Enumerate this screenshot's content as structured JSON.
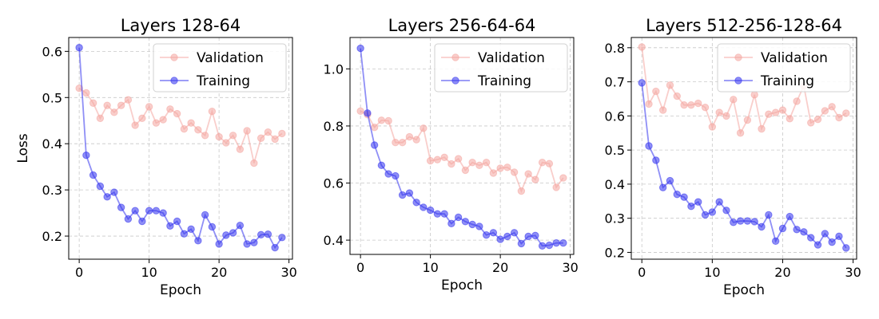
{
  "chart_data": [
    {
      "type": "line",
      "title": "Layers 128-64",
      "xlabel": "Epoch",
      "ylabel": "Loss",
      "xlim": [
        -1.5,
        30.5
      ],
      "ylim": [
        0.15,
        0.63
      ],
      "xticks": [
        0,
        10,
        20,
        30
      ],
      "yticks": [
        0.2,
        0.3,
        0.4,
        0.5,
        0.6
      ],
      "ytick_labels": [
        "0.2",
        "0.3",
        "0.4",
        "0.5",
        "0.6"
      ],
      "grid": true,
      "legend_position": "top-right",
      "x": [
        0,
        1,
        2,
        3,
        4,
        5,
        6,
        7,
        8,
        9,
        10,
        11,
        12,
        13,
        14,
        15,
        16,
        17,
        18,
        19,
        20,
        21,
        22,
        23,
        24,
        25,
        26,
        27,
        28,
        29
      ],
      "series": [
        {
          "name": "Validation",
          "color": "#f4a6a0",
          "values": [
            0.52,
            0.51,
            0.488,
            0.455,
            0.483,
            0.468,
            0.483,
            0.495,
            0.44,
            0.455,
            0.48,
            0.445,
            0.452,
            0.475,
            0.465,
            0.432,
            0.445,
            0.43,
            0.418,
            0.47,
            0.415,
            0.402,
            0.418,
            0.388,
            0.428,
            0.358,
            0.412,
            0.425,
            0.41,
            0.422
          ]
        },
        {
          "name": "Training",
          "color": "#3333ee",
          "values": [
            0.608,
            0.375,
            0.332,
            0.308,
            0.285,
            0.295,
            0.262,
            0.237,
            0.255,
            0.232,
            0.255,
            0.255,
            0.25,
            0.222,
            0.232,
            0.205,
            0.215,
            0.19,
            0.246,
            0.22,
            0.183,
            0.202,
            0.207,
            0.223,
            0.183,
            0.186,
            0.203,
            0.204,
            0.175,
            0.197
          ]
        }
      ]
    },
    {
      "type": "line",
      "title": "Layers 256-64-64",
      "xlabel": "Epoch",
      "ylabel": "",
      "xlim": [
        -1.5,
        30.5
      ],
      "ylim": [
        0.35,
        1.11
      ],
      "xticks": [
        0,
        10,
        20,
        30
      ],
      "yticks": [
        0.4,
        0.6,
        0.8,
        1.0
      ],
      "ytick_labels": [
        "0.4",
        "0.6",
        "0.8",
        "1.0"
      ],
      "grid": true,
      "legend_position": "top-right",
      "x": [
        0,
        1,
        2,
        3,
        4,
        5,
        6,
        7,
        8,
        9,
        10,
        11,
        12,
        13,
        14,
        15,
        16,
        17,
        18,
        19,
        20,
        21,
        22,
        23,
        24,
        25,
        26,
        27,
        28,
        29
      ],
      "series": [
        {
          "name": "Validation",
          "color": "#f4a6a0",
          "values": [
            0.852,
            0.84,
            0.795,
            0.82,
            0.818,
            0.742,
            0.742,
            0.762,
            0.752,
            0.792,
            0.678,
            0.682,
            0.69,
            0.667,
            0.685,
            0.645,
            0.672,
            0.662,
            0.672,
            0.635,
            0.652,
            0.655,
            0.638,
            0.572,
            0.632,
            0.612,
            0.672,
            0.668,
            0.585,
            0.618
          ]
        },
        {
          "name": "Training",
          "color": "#3333ee",
          "values": [
            1.072,
            0.845,
            0.733,
            0.662,
            0.632,
            0.625,
            0.558,
            0.565,
            0.532,
            0.515,
            0.505,
            0.492,
            0.492,
            0.458,
            0.48,
            0.465,
            0.455,
            0.448,
            0.418,
            0.426,
            0.403,
            0.413,
            0.426,
            0.388,
            0.413,
            0.416,
            0.38,
            0.382,
            0.39,
            0.39
          ]
        }
      ]
    },
    {
      "type": "line",
      "title": "Layers 512-256-128-64",
      "xlabel": "Epoch",
      "ylabel": "",
      "xlim": [
        -1.5,
        30.5
      ],
      "ylim": [
        0.18,
        0.83
      ],
      "xticks": [
        0,
        10,
        20,
        30
      ],
      "yticks": [
        0.2,
        0.3,
        0.4,
        0.5,
        0.6,
        0.7,
        0.8
      ],
      "ytick_labels": [
        "0.2",
        "0.3",
        "0.4",
        "0.5",
        "0.6",
        "0.7",
        "0.8"
      ],
      "grid": true,
      "legend_position": "top-right",
      "x": [
        0,
        1,
        2,
        3,
        4,
        5,
        6,
        7,
        8,
        9,
        10,
        11,
        12,
        13,
        14,
        15,
        16,
        17,
        18,
        19,
        20,
        21,
        22,
        23,
        24,
        25,
        26,
        27,
        28,
        29
      ],
      "series": [
        {
          "name": "Validation",
          "color": "#f4a6a0",
          "values": [
            0.802,
            0.635,
            0.672,
            0.617,
            0.69,
            0.658,
            0.632,
            0.632,
            0.637,
            0.625,
            0.568,
            0.61,
            0.6,
            0.648,
            0.55,
            0.588,
            0.662,
            0.562,
            0.605,
            0.61,
            0.617,
            0.592,
            0.643,
            0.688,
            0.58,
            0.59,
            0.615,
            0.627,
            0.595,
            0.608
          ]
        },
        {
          "name": "Training",
          "color": "#3333ee",
          "values": [
            0.697,
            0.512,
            0.47,
            0.39,
            0.41,
            0.37,
            0.362,
            0.335,
            0.348,
            0.31,
            0.318,
            0.348,
            0.323,
            0.288,
            0.292,
            0.292,
            0.29,
            0.275,
            0.31,
            0.233,
            0.27,
            0.305,
            0.267,
            0.26,
            0.243,
            0.222,
            0.255,
            0.23,
            0.247,
            0.213
          ]
        }
      ]
    }
  ]
}
